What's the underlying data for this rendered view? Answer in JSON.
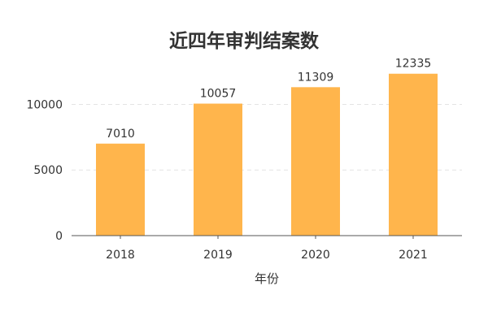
{
  "chart_data": {
    "type": "bar",
    "title": "近四年审判结案数",
    "xlabel": "年份",
    "ylabel": "",
    "categories": [
      "2018",
      "2019",
      "2020",
      "2021"
    ],
    "values": [
      7010,
      10057,
      11309,
      12335
    ],
    "ylim": [
      0,
      13000
    ],
    "yticks": [
      0,
      5000,
      10000
    ],
    "grid": true,
    "bar_color": "#ffb54c"
  }
}
